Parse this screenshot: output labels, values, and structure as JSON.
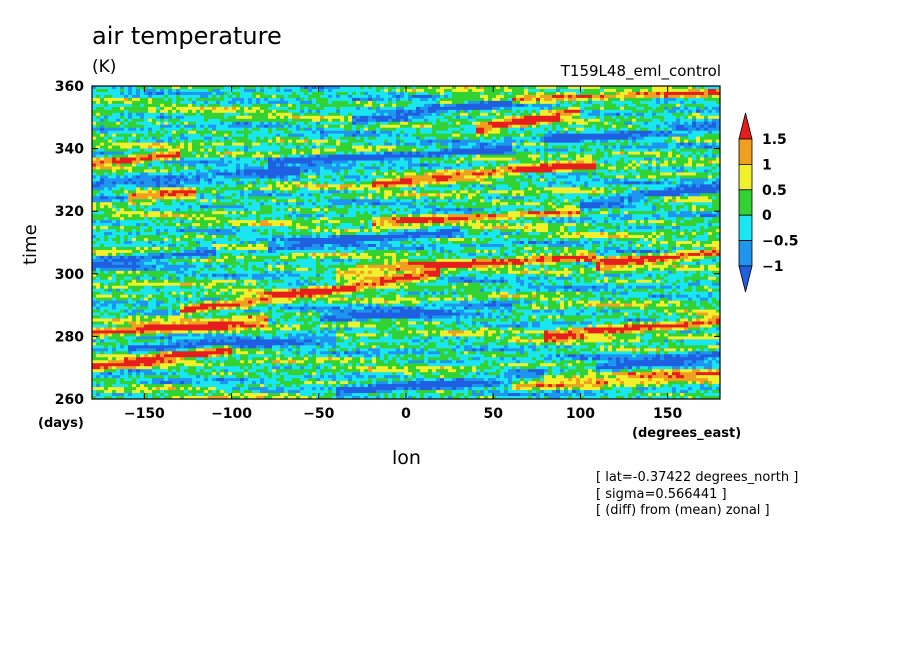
{
  "title": "air temperature",
  "units": "(K)",
  "run_name": "T159L48_eml_control",
  "notes": [
    "[ lat=-0.37422 degrees_north ]",
    "[ sigma=0.566441 ]",
    "[ (diff) from (mean) zonal ]"
  ],
  "colors": {
    "below_-1": "#1f5fe0",
    "-1_to_-0.5": "#1e96f0",
    "-0.5_to_0": "#19e6f0",
    "0_to_0.5": "#32d232",
    "0.5_to_1": "#f0f02d",
    "1_to_1.5": "#f0a01e",
    "above_1.5": "#e61e1e"
  },
  "chart_data": {
    "type": "heatmap",
    "title": "air temperature",
    "units": "(K)",
    "xlabel": "lon",
    "xunit": "(degrees_east)",
    "ylabel": "time",
    "yunit": "(days)",
    "xlim": [
      -180,
      180
    ],
    "ylim": [
      260,
      360
    ],
    "x_ticks": [
      -150,
      -100,
      -50,
      0,
      50,
      100,
      150
    ],
    "y_ticks": [
      260,
      280,
      300,
      320,
      340,
      360
    ],
    "contour_levels": [
      -1,
      -0.5,
      0,
      0.5,
      1,
      1.5
    ],
    "legend_labels": [
      "1.5",
      "1",
      "0.5",
      "0",
      "-0.5",
      "-1"
    ],
    "legend_position": "right",
    "colorbar_colors": [
      "#e61e1e",
      "#f0a01e",
      "#f0f02d",
      "#32d232",
      "#19e6f0",
      "#1e96f0",
      "#1f5fe0"
    ],
    "field_description": "Hovmoller diagram of zonal anomaly of air temperature; eastward-propagating bands",
    "bands": [
      {
        "lon_start": -180,
        "lon_end": -100,
        "time_start": 270,
        "time_end": 276,
        "value": 1.6
      },
      {
        "lon_start": -180,
        "lon_end": -80,
        "time_start": 281,
        "time_end": 285,
        "value": 1.6
      },
      {
        "lon_start": -130,
        "lon_end": 20,
        "time_start": 288,
        "time_end": 300,
        "value": 1.6
      },
      {
        "lon_start": -40,
        "lon_end": 110,
        "time_start": 300,
        "time_end": 306,
        "value": 1.2
      },
      {
        "lon_start": 110,
        "lon_end": 180,
        "time_start": 303,
        "time_end": 307,
        "value": 1.6
      },
      {
        "lon_start": 80,
        "lon_end": 180,
        "time_start": 280,
        "time_end": 285,
        "value": 1.6
      },
      {
        "lon_start": -160,
        "lon_end": -120,
        "time_start": 324,
        "time_end": 326,
        "value": 1.6
      },
      {
        "lon_start": -20,
        "lon_end": 110,
        "time_start": 329,
        "time_end": 335,
        "value": 1.6
      },
      {
        "lon_start": 40,
        "lon_end": 100,
        "time_start": 346,
        "time_end": 352,
        "value": 1.6
      },
      {
        "lon_start": -180,
        "lon_end": -130,
        "time_start": 335,
        "time_end": 338,
        "value": 1.6
      },
      {
        "lon_start": -20,
        "lon_end": 100,
        "time_start": 316,
        "time_end": 320,
        "value": 1.2
      },
      {
        "lon_start": 60,
        "lon_end": 180,
        "time_start": 264,
        "time_end": 268,
        "value": 1.1
      },
      {
        "lon_start": -80,
        "lon_end": 60,
        "time_start": 335,
        "time_end": 340,
        "value": -1.3
      },
      {
        "lon_start": -30,
        "lon_end": 60,
        "time_start": 349,
        "time_end": 355,
        "value": -1.3
      },
      {
        "lon_start": -180,
        "lon_end": -60,
        "time_start": 329,
        "time_end": 332,
        "value": -1.2
      },
      {
        "lon_start": -80,
        "lon_end": 30,
        "time_start": 308,
        "time_end": 314,
        "value": -1.1
      },
      {
        "lon_start": 80,
        "lon_end": 180,
        "time_start": 343,
        "time_end": 347,
        "value": -1.2
      },
      {
        "lon_start": 100,
        "lon_end": 180,
        "time_start": 322,
        "time_end": 328,
        "value": -1.2
      },
      {
        "lon_start": -40,
        "lon_end": 80,
        "time_start": 262,
        "time_end": 268,
        "value": -1.1
      },
      {
        "lon_start": 110,
        "lon_end": 180,
        "time_start": 270,
        "time_end": 274,
        "value": -1.1
      },
      {
        "lon_start": -160,
        "lon_end": -40,
        "time_start": 276,
        "time_end": 280,
        "value": -1.0
      },
      {
        "lon_start": -50,
        "lon_end": 60,
        "time_start": 286,
        "time_end": 290,
        "value": -1.0
      },
      {
        "lon_start": -180,
        "lon_end": -110,
        "time_start": 303,
        "time_end": 307,
        "value": -1.1
      },
      {
        "lon_start": 20,
        "lon_end": 180,
        "time_start": 355,
        "time_end": 358,
        "value": 0.8
      }
    ]
  }
}
